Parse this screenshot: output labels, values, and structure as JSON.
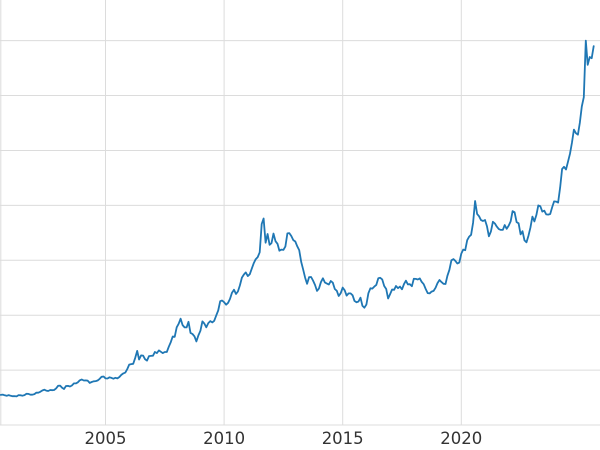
{
  "figure": {
    "background": "#ffffff"
  },
  "chart_data": {
    "type": "line",
    "title": "",
    "xlabel": "",
    "ylabel": "",
    "legend": "none",
    "grid": true,
    "x_ticks": [
      2005,
      2010,
      2015,
      2020
    ],
    "x_tick_labels": [
      "2005",
      "2010",
      "2015",
      "2020"
    ],
    "xlim": [
      2000.55,
      2025.85
    ],
    "ylim": [
      0,
      3870
    ],
    "y_gridlines": [
      0,
      500,
      1000,
      1500,
      2000,
      2500,
      3000,
      3500
    ],
    "line_color": "#1f77b4",
    "grid_color": "#dcdcdc",
    "tick_label_color": "#333333",
    "series": [
      {
        "name": "price-series",
        "x_start": 2000.5833,
        "x_step": 0.0833333,
        "y": [
          274,
          277,
          270,
          266,
          272,
          266,
          262,
          263,
          260,
          272,
          270,
          267,
          272,
          284,
          283,
          276,
          276,
          281,
          295,
          294,
          302,
          314,
          321,
          313,
          310,
          319,
          317,
          319,
          333,
          357,
          359,
          340,
          328,
          355,
          356,
          351,
          360,
          379,
          379,
          389,
          407,
          414,
          405,
          406,
          403,
          383,
          392,
          398,
          400,
          405,
          420,
          439,
          442,
          424,
          423,
          434,
          429,
          422,
          430,
          424,
          437,
          456,
          470,
          477,
          510,
          550,
          555,
          557,
          611,
          675,
          596,
          634,
          632,
          598,
          586,
          627,
          629,
          631,
          665,
          655,
          679,
          667,
          655,
          665,
          665,
          713,
          755,
          806,
          803,
          890,
          922,
          968,
          910,
          889,
          889,
          940,
          839,
          829,
          807,
          761,
          816,
          858,
          943,
          924,
          890,
          928,
          946,
          934,
          949,
          996,
          1043,
          1127,
          1134,
          1118,
          1095,
          1113,
          1148,
          1205,
          1232,
          1193,
          1216,
          1271,
          1342,
          1370,
          1390,
          1356,
          1373,
          1424,
          1474,
          1510,
          1529,
          1573,
          1830,
          1880,
          1660,
          1739,
          1640,
          1656,
          1743,
          1674,
          1650,
          1587,
          1597,
          1594,
          1626,
          1745,
          1747,
          1721,
          1684,
          1671,
          1628,
          1593,
          1485,
          1414,
          1342,
          1286,
          1347,
          1348,
          1316,
          1276,
          1221,
          1244,
          1300,
          1336,
          1298,
          1288,
          1279,
          1311,
          1296,
          1238,
          1222,
          1175,
          1200,
          1251,
          1227,
          1178,
          1198,
          1198,
          1181,
          1130,
          1117,
          1125,
          1159,
          1086,
          1068,
          1097,
          1200,
          1245,
          1242,
          1260,
          1276,
          1337,
          1340,
          1326,
          1266,
          1238,
          1152,
          1192,
          1234,
          1231,
          1266,
          1246,
          1260,
          1236,
          1283,
          1314,
          1280,
          1282,
          1264,
          1331,
          1330,
          1325,
          1335,
          1303,
          1282,
          1238,
          1201,
          1198,
          1215,
          1221,
          1250,
          1292,
          1320,
          1301,
          1286,
          1284,
          1359,
          1413,
          1500,
          1511,
          1495,
          1471,
          1479,
          1561,
          1597,
          1592,
          1683,
          1716,
          1732,
          1843,
          2040,
          1922,
          1900,
          1866,
          1858,
          1867,
          1808,
          1718,
          1762,
          1850,
          1835,
          1807,
          1784,
          1777,
          1777,
          1820,
          1787,
          1816,
          1856,
          1948,
          1937,
          1848,
          1837,
          1736,
          1765,
          1681,
          1664,
          1725,
          1797,
          1898,
          1854,
          1913,
          2000,
          1992,
          1943,
          1951,
          1918,
          1916,
          1921,
          1984,
          2036,
          2034,
          2025,
          2160,
          2331,
          2351,
          2327,
          2398,
          2470,
          2568,
          2690,
          2657,
          2643,
          2750,
          2900,
          2985,
          3500,
          3280,
          3350,
          3340,
          3450
        ]
      }
    ]
  }
}
